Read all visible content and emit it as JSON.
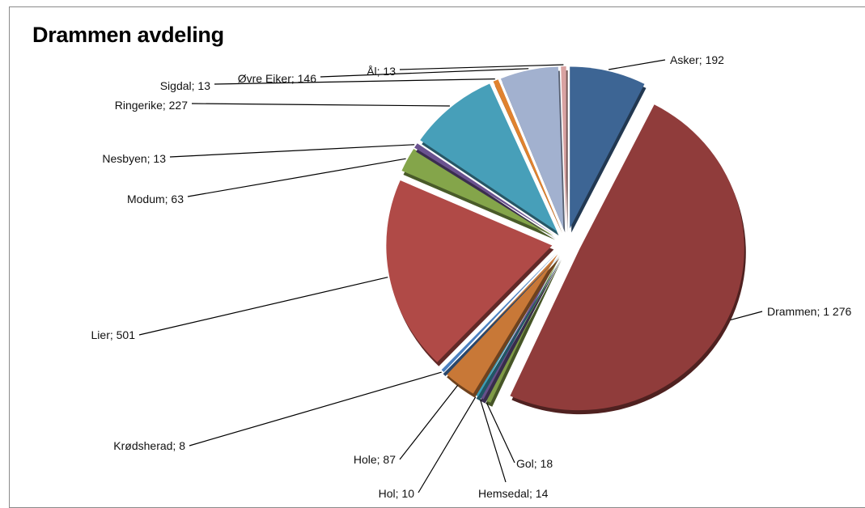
{
  "chart_data": {
    "type": "pie",
    "title": "Drammen avdeling",
    "slices": [
      {
        "label": "Asker; 192",
        "name": "Asker",
        "value": 192,
        "color": "#3d6594"
      },
      {
        "label": "Drammen; 1 276",
        "name": "Drammen",
        "value": 1276,
        "color": "#903c3b"
      },
      {
        "label": "Gol; 18",
        "name": "Gol",
        "value": 18,
        "color": "#7f9b47"
      },
      {
        "label": "Hemsedal; 14",
        "name": "Hemsedal",
        "value": 14,
        "color": "#66508a"
      },
      {
        "label": "Hol; 10",
        "name": "Hol",
        "value": 10,
        "color": "#3b9cb6"
      },
      {
        "label": "Hole; 87",
        "name": "Hole",
        "value": 87,
        "color": "#c87837"
      },
      {
        "label": "Krødsherad; 8",
        "name": "Krødsherad",
        "value": 8,
        "color": "#4a7fc0"
      },
      {
        "label": "Lier; 501",
        "name": "Lier",
        "value": 501,
        "color": "#b04a47"
      },
      {
        "label": "Modum; 63",
        "name": "Modum",
        "value": 63,
        "color": "#84a54a"
      },
      {
        "label": "Nesbyen; 13",
        "name": "Nesbyen",
        "value": 13,
        "color": "#6a528f"
      },
      {
        "label": "Ringerike; 227",
        "name": "Ringerike",
        "value": 227,
        "color": "#479fb9"
      },
      {
        "label": "Sigdal; 13",
        "name": "Sigdal",
        "value": 13,
        "color": "#e0822f"
      },
      {
        "label": "Øvre Eiker; 146",
        "name": "Øvre Eiker",
        "value": 146,
        "color": "#a2b1cf"
      },
      {
        "label": "Ål; 13",
        "name": "Ål",
        "value": 13,
        "color": "#d9a3a2"
      }
    ]
  }
}
